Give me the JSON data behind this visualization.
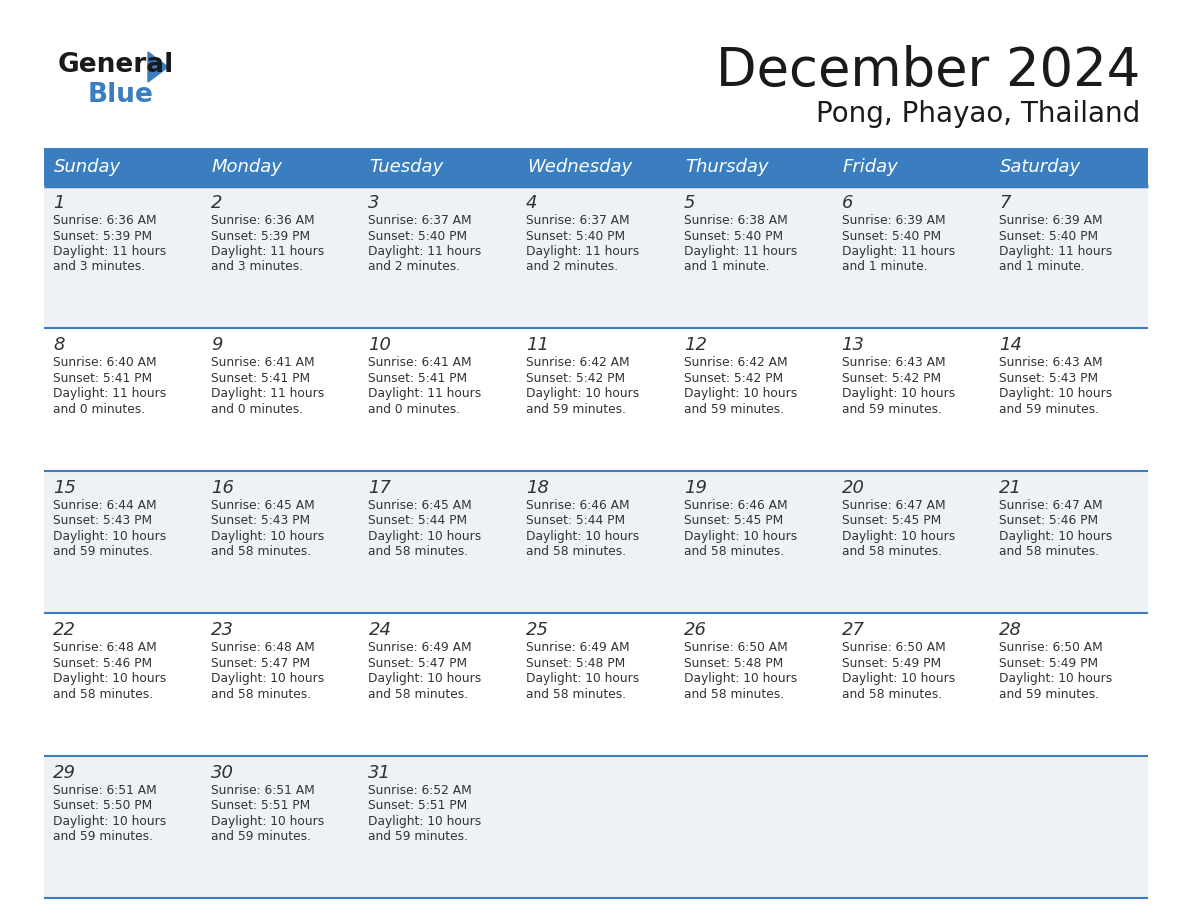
{
  "title": "December 2024",
  "subtitle": "Pong, Phayao, Thailand",
  "days_of_week": [
    "Sunday",
    "Monday",
    "Tuesday",
    "Wednesday",
    "Thursday",
    "Friday",
    "Saturday"
  ],
  "header_bg": "#3a7ebf",
  "header_text": "#ffffff",
  "row_bg_odd": "#eef2f7",
  "row_bg_even": "#ffffff",
  "divider_color": "#3a7ebf",
  "text_color": "#333333",
  "title_color": "#1a1a1a",
  "calendar": [
    [
      {
        "day": "1",
        "sunrise": "6:36 AM",
        "sunset": "5:39 PM",
        "daylight_h": "11 hours",
        "daylight_m": "and 3 minutes."
      },
      {
        "day": "2",
        "sunrise": "6:36 AM",
        "sunset": "5:39 PM",
        "daylight_h": "11 hours",
        "daylight_m": "and 3 minutes."
      },
      {
        "day": "3",
        "sunrise": "6:37 AM",
        "sunset": "5:40 PM",
        "daylight_h": "11 hours",
        "daylight_m": "and 2 minutes."
      },
      {
        "day": "4",
        "sunrise": "6:37 AM",
        "sunset": "5:40 PM",
        "daylight_h": "11 hours",
        "daylight_m": "and 2 minutes."
      },
      {
        "day": "5",
        "sunrise": "6:38 AM",
        "sunset": "5:40 PM",
        "daylight_h": "11 hours",
        "daylight_m": "and 1 minute."
      },
      {
        "day": "6",
        "sunrise": "6:39 AM",
        "sunset": "5:40 PM",
        "daylight_h": "11 hours",
        "daylight_m": "and 1 minute."
      },
      {
        "day": "7",
        "sunrise": "6:39 AM",
        "sunset": "5:40 PM",
        "daylight_h": "11 hours",
        "daylight_m": "and 1 minute."
      }
    ],
    [
      {
        "day": "8",
        "sunrise": "6:40 AM",
        "sunset": "5:41 PM",
        "daylight_h": "11 hours",
        "daylight_m": "and 0 minutes."
      },
      {
        "day": "9",
        "sunrise": "6:41 AM",
        "sunset": "5:41 PM",
        "daylight_h": "11 hours",
        "daylight_m": "and 0 minutes."
      },
      {
        "day": "10",
        "sunrise": "6:41 AM",
        "sunset": "5:41 PM",
        "daylight_h": "11 hours",
        "daylight_m": "and 0 minutes."
      },
      {
        "day": "11",
        "sunrise": "6:42 AM",
        "sunset": "5:42 PM",
        "daylight_h": "10 hours",
        "daylight_m": "and 59 minutes."
      },
      {
        "day": "12",
        "sunrise": "6:42 AM",
        "sunset": "5:42 PM",
        "daylight_h": "10 hours",
        "daylight_m": "and 59 minutes."
      },
      {
        "day": "13",
        "sunrise": "6:43 AM",
        "sunset": "5:42 PM",
        "daylight_h": "10 hours",
        "daylight_m": "and 59 minutes."
      },
      {
        "day": "14",
        "sunrise": "6:43 AM",
        "sunset": "5:43 PM",
        "daylight_h": "10 hours",
        "daylight_m": "and 59 minutes."
      }
    ],
    [
      {
        "day": "15",
        "sunrise": "6:44 AM",
        "sunset": "5:43 PM",
        "daylight_h": "10 hours",
        "daylight_m": "and 59 minutes."
      },
      {
        "day": "16",
        "sunrise": "6:45 AM",
        "sunset": "5:43 PM",
        "daylight_h": "10 hours",
        "daylight_m": "and 58 minutes."
      },
      {
        "day": "17",
        "sunrise": "6:45 AM",
        "sunset": "5:44 PM",
        "daylight_h": "10 hours",
        "daylight_m": "and 58 minutes."
      },
      {
        "day": "18",
        "sunrise": "6:46 AM",
        "sunset": "5:44 PM",
        "daylight_h": "10 hours",
        "daylight_m": "and 58 minutes."
      },
      {
        "day": "19",
        "sunrise": "6:46 AM",
        "sunset": "5:45 PM",
        "daylight_h": "10 hours",
        "daylight_m": "and 58 minutes."
      },
      {
        "day": "20",
        "sunrise": "6:47 AM",
        "sunset": "5:45 PM",
        "daylight_h": "10 hours",
        "daylight_m": "and 58 minutes."
      },
      {
        "day": "21",
        "sunrise": "6:47 AM",
        "sunset": "5:46 PM",
        "daylight_h": "10 hours",
        "daylight_m": "and 58 minutes."
      }
    ],
    [
      {
        "day": "22",
        "sunrise": "6:48 AM",
        "sunset": "5:46 PM",
        "daylight_h": "10 hours",
        "daylight_m": "and 58 minutes."
      },
      {
        "day": "23",
        "sunrise": "6:48 AM",
        "sunset": "5:47 PM",
        "daylight_h": "10 hours",
        "daylight_m": "and 58 minutes."
      },
      {
        "day": "24",
        "sunrise": "6:49 AM",
        "sunset": "5:47 PM",
        "daylight_h": "10 hours",
        "daylight_m": "and 58 minutes."
      },
      {
        "day": "25",
        "sunrise": "6:49 AM",
        "sunset": "5:48 PM",
        "daylight_h": "10 hours",
        "daylight_m": "and 58 minutes."
      },
      {
        "day": "26",
        "sunrise": "6:50 AM",
        "sunset": "5:48 PM",
        "daylight_h": "10 hours",
        "daylight_m": "and 58 minutes."
      },
      {
        "day": "27",
        "sunrise": "6:50 AM",
        "sunset": "5:49 PM",
        "daylight_h": "10 hours",
        "daylight_m": "and 58 minutes."
      },
      {
        "day": "28",
        "sunrise": "6:50 AM",
        "sunset": "5:49 PM",
        "daylight_h": "10 hours",
        "daylight_m": "and 59 minutes."
      }
    ],
    [
      {
        "day": "29",
        "sunrise": "6:51 AM",
        "sunset": "5:50 PM",
        "daylight_h": "10 hours",
        "daylight_m": "and 59 minutes."
      },
      {
        "day": "30",
        "sunrise": "6:51 AM",
        "sunset": "5:51 PM",
        "daylight_h": "10 hours",
        "daylight_m": "and 59 minutes."
      },
      {
        "day": "31",
        "sunrise": "6:52 AM",
        "sunset": "5:51 PM",
        "daylight_h": "10 hours",
        "daylight_m": "and 59 minutes."
      },
      null,
      null,
      null,
      null
    ]
  ]
}
